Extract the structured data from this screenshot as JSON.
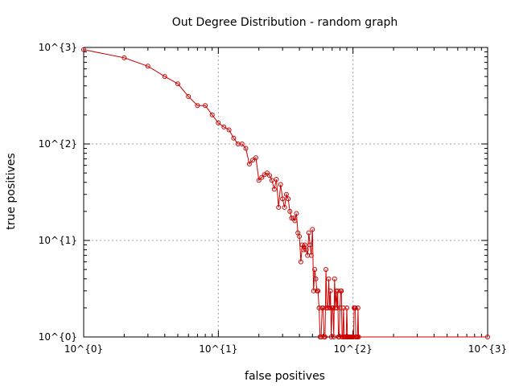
{
  "chart_data": {
    "type": "line",
    "title": "Out Degree Distribution - random graph",
    "xlabel": "false positives",
    "ylabel": "true positives",
    "xscale": "log",
    "yscale": "log",
    "xlim": [
      1,
      1000
    ],
    "ylim": [
      1,
      1000
    ],
    "grid": true,
    "legend": "none",
    "xticks": [
      1,
      10,
      100,
      1000
    ],
    "xtick_labels": [
      "10^{0}",
      "10^{1}",
      "10^{2}",
      "10^{3}"
    ],
    "yticks": [
      1,
      10,
      100,
      1000
    ],
    "ytick_labels": [
      "10^{0}",
      "10^{1}",
      "10^{2}",
      "10^{3}"
    ],
    "series": [
      {
        "color": "#cc0000",
        "marker": "circle",
        "x": [
          1,
          2,
          3,
          4,
          5,
          6,
          7,
          8,
          9,
          10,
          11,
          12,
          13,
          14,
          15,
          16,
          17,
          18,
          19,
          20,
          21,
          22,
          23,
          24,
          25,
          26,
          27,
          28,
          29,
          30,
          31,
          32,
          33,
          34,
          35,
          36,
          37,
          38,
          39,
          40,
          41,
          42,
          43,
          44,
          45,
          46,
          47,
          48,
          49,
          50,
          51,
          52,
          53,
          54,
          55,
          56,
          57,
          58,
          59,
          60,
          61,
          62,
          63,
          64,
          65,
          66,
          67,
          68,
          69,
          70,
          71,
          72,
          73,
          74,
          75,
          76,
          77,
          78,
          79,
          80,
          81,
          82,
          83,
          84,
          85,
          86,
          87,
          88,
          89,
          90,
          91,
          92,
          93,
          94,
          95,
          96,
          97,
          98,
          99,
          100,
          101,
          102,
          103,
          104,
          105,
          106,
          107,
          108,
          109,
          110,
          1000
        ],
        "y": [
          950,
          780,
          640,
          500,
          420,
          310,
          250,
          250,
          200,
          165,
          150,
          140,
          115,
          100,
          100,
          90,
          62,
          68,
          72,
          42,
          45,
          48,
          50,
          47,
          42,
          34,
          43,
          22,
          38,
          27,
          22,
          30,
          27,
          20,
          17,
          17,
          16,
          19,
          12,
          11,
          6,
          9,
          8,
          9,
          8,
          7,
          12,
          9,
          7,
          13,
          3,
          5,
          4,
          3,
          3,
          2,
          1,
          1,
          2,
          2,
          1,
          1,
          5,
          2,
          2,
          4,
          2,
          3,
          1,
          2,
          2,
          1,
          4,
          2,
          3,
          2,
          3,
          1,
          1,
          2,
          3,
          3,
          1,
          1,
          2,
          1,
          1,
          1,
          1,
          2,
          1,
          1,
          1,
          1,
          1,
          1,
          1,
          1,
          1,
          1,
          1,
          2,
          2,
          2,
          1,
          1,
          1,
          1,
          2,
          1,
          1
        ]
      }
    ]
  }
}
